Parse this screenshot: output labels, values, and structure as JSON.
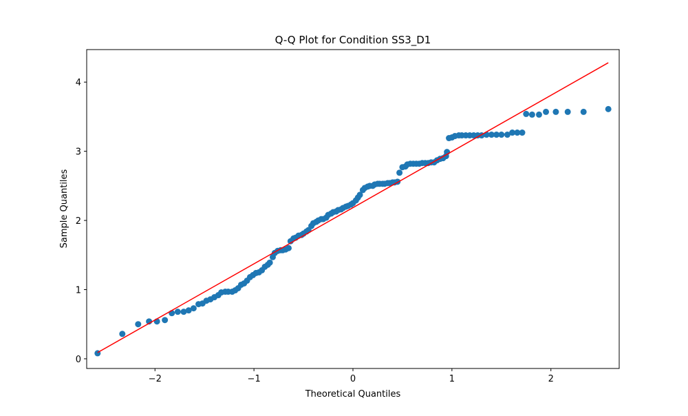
{
  "chart_data": {
    "type": "scatter",
    "title": "Q-Q Plot for Condition SS3_D1",
    "x_label": "Theoretical Quantiles",
    "y_label": "Sample Quantiles",
    "xlim": [
      -2.69,
      2.69
    ],
    "ylim": [
      -0.14,
      4.47
    ],
    "xticks": [
      {
        "value": -2,
        "label": "−2"
      },
      {
        "value": -1,
        "label": "−1"
      },
      0,
      1,
      2
    ],
    "yticks": [
      0,
      1,
      2,
      3,
      4
    ],
    "series": [
      {
        "color": "#1f77b4",
        "x": [
          -2.58,
          -2.33,
          -2.17,
          -2.06,
          -1.98,
          -1.9,
          -1.83,
          -1.77,
          -1.71,
          -1.66,
          -1.61,
          -1.56,
          -1.52,
          -1.48,
          -1.44,
          -1.4,
          -1.36,
          -1.33,
          -1.29,
          -1.26,
          -1.22,
          -1.19,
          -1.16,
          -1.13,
          -1.1,
          -1.07,
          -1.04,
          -1.01,
          -0.98,
          -0.95,
          -0.92,
          -0.89,
          -0.86,
          -0.84,
          -0.81,
          -0.79,
          -0.76,
          -0.73,
          -0.71,
          -0.68,
          -0.65,
          -0.63,
          -0.6,
          -0.58,
          -0.55,
          -0.52,
          -0.5,
          -0.47,
          -0.45,
          -0.42,
          -0.4,
          -0.37,
          -0.35,
          -0.32,
          -0.3,
          -0.27,
          -0.25,
          -0.22,
          -0.2,
          -0.17,
          -0.15,
          -0.12,
          -0.1,
          -0.07,
          -0.05,
          -0.02,
          0.0,
          0.03,
          0.05,
          0.07,
          0.1,
          0.12,
          0.15,
          0.17,
          0.2,
          0.22,
          0.25,
          0.27,
          0.3,
          0.32,
          0.35,
          0.37,
          0.4,
          0.42,
          0.45,
          0.47,
          0.5,
          0.53,
          0.55,
          0.58,
          0.61,
          0.64,
          0.67,
          0.7,
          0.73,
          0.76,
          0.79,
          0.82,
          0.85,
          0.88,
          0.91,
          0.94,
          0.95,
          0.97,
          1.0,
          1.03,
          1.07,
          1.1,
          1.14,
          1.18,
          1.22,
          1.26,
          1.3,
          1.35,
          1.4,
          1.45,
          1.5,
          1.56,
          1.61,
          1.66,
          1.71,
          1.75,
          1.81,
          1.88,
          1.95,
          2.05,
          2.17,
          2.33,
          2.58
        ],
        "y": [
          0.08,
          0.36,
          0.5,
          0.54,
          0.54,
          0.56,
          0.66,
          0.68,
          0.68,
          0.7,
          0.73,
          0.79,
          0.8,
          0.84,
          0.86,
          0.89,
          0.92,
          0.96,
          0.97,
          0.97,
          0.97,
          0.99,
          1.02,
          1.07,
          1.09,
          1.13,
          1.18,
          1.21,
          1.24,
          1.25,
          1.28,
          1.33,
          1.36,
          1.39,
          1.47,
          1.53,
          1.56,
          1.57,
          1.57,
          1.58,
          1.6,
          1.7,
          1.74,
          1.75,
          1.78,
          1.79,
          1.81,
          1.84,
          1.86,
          1.92,
          1.96,
          1.98,
          2.0,
          2.02,
          2.02,
          2.04,
          2.08,
          2.1,
          2.12,
          2.13,
          2.15,
          2.16,
          2.18,
          2.2,
          2.21,
          2.23,
          2.25,
          2.29,
          2.33,
          2.37,
          2.44,
          2.47,
          2.49,
          2.5,
          2.5,
          2.52,
          2.53,
          2.53,
          2.53,
          2.53,
          2.54,
          2.54,
          2.55,
          2.55,
          2.56,
          2.69,
          2.77,
          2.78,
          2.81,
          2.82,
          2.82,
          2.82,
          2.82,
          2.83,
          2.83,
          2.83,
          2.84,
          2.84,
          2.87,
          2.89,
          2.9,
          2.93,
          2.99,
          3.19,
          3.2,
          3.22,
          3.23,
          3.23,
          3.23,
          3.23,
          3.23,
          3.23,
          3.23,
          3.24,
          3.24,
          3.24,
          3.24,
          3.24,
          3.27,
          3.27,
          3.27,
          3.54,
          3.53,
          3.53,
          3.57,
          3.57,
          3.57,
          3.57,
          3.61
        ]
      }
    ],
    "reference_line": {
      "color": "red",
      "x": [
        -2.58,
        2.58
      ],
      "y": [
        0.09,
        4.28
      ]
    }
  }
}
